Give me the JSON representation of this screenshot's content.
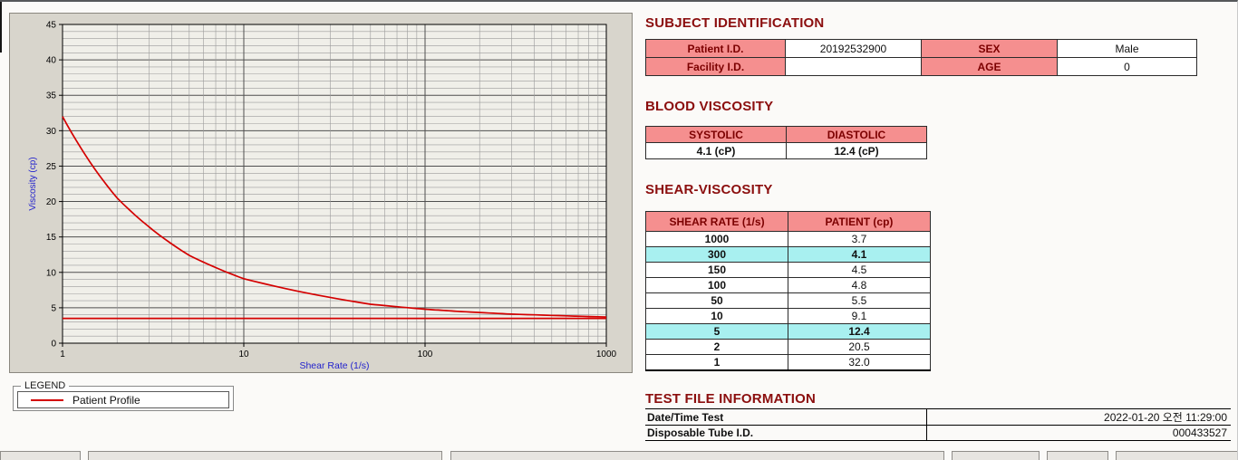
{
  "legend": {
    "title": "LEGEND",
    "series_label": "Patient Profile"
  },
  "subject_identification": {
    "title": "SUBJECT IDENTIFICATION",
    "patient_id_label": "Patient I.D.",
    "patient_id": "20192532900",
    "sex_label": "SEX",
    "sex": "Male",
    "facility_id_label": "Facility I.D.",
    "facility_id": "",
    "age_label": "AGE",
    "age": "0"
  },
  "blood_viscosity": {
    "title": "BLOOD VISCOSITY",
    "systolic_label": "SYSTOLIC",
    "systolic_value": "4.1 (cP)",
    "diastolic_label": "DIASTOLIC",
    "diastolic_value": "12.4 (cP)"
  },
  "shear_viscosity": {
    "title": "SHEAR-VISCOSITY",
    "col_headers": [
      "SHEAR RATE (1/s)",
      "PATIENT (cp)"
    ],
    "rows": [
      {
        "shear_rate": "1000",
        "patient": "3.7",
        "highlight": false
      },
      {
        "shear_rate": "300",
        "patient": "4.1",
        "highlight": true
      },
      {
        "shear_rate": "150",
        "patient": "4.5",
        "highlight": false
      },
      {
        "shear_rate": "100",
        "patient": "4.8",
        "highlight": false
      },
      {
        "shear_rate": "50",
        "patient": "5.5",
        "highlight": false
      },
      {
        "shear_rate": "10",
        "patient": "9.1",
        "highlight": false
      },
      {
        "shear_rate": "5",
        "patient": "12.4",
        "highlight": true
      },
      {
        "shear_rate": "2",
        "patient": "20.5",
        "highlight": false
      },
      {
        "shear_rate": "1",
        "patient": "32.0",
        "highlight": false
      }
    ]
  },
  "test_file_information": {
    "title": "TEST FILE INFORMATION",
    "rows": [
      {
        "label": "Date/Time Test",
        "value": "2022-01-20  오전 11:29:00"
      },
      {
        "label": "Disposable Tube I.D.",
        "value": "000433527"
      }
    ]
  },
  "chart_data": {
    "type": "line",
    "title": "",
    "xlabel": "Shear Rate (1/s)",
    "ylabel": "Viscosity (cp)",
    "x_scale": "log",
    "xlim": [
      1,
      1000
    ],
    "ylim": [
      0,
      45
    ],
    "x_ticks": [
      1,
      10,
      100,
      1000
    ],
    "y_ticks": [
      0,
      5,
      10,
      15,
      20,
      25,
      30,
      35,
      40,
      45
    ],
    "y_minor_step": 1,
    "grid": true,
    "legend_position": "below-left",
    "series": [
      {
        "name": "Patient Profile",
        "color": "#d40000",
        "x": [
          1,
          2,
          5,
          10,
          50,
          100,
          150,
          300,
          1000
        ],
        "y": [
          32.0,
          20.5,
          12.4,
          9.1,
          5.5,
          4.8,
          4.5,
          4.1,
          3.7
        ]
      },
      {
        "name": "reference-line",
        "color": "#d40000",
        "x": [
          1,
          1000
        ],
        "y": [
          3.5,
          3.5
        ]
      }
    ]
  },
  "colors": {
    "section_title": "#8b0e0e",
    "table_header_bg": "#f58f8f",
    "table_header_text": "#7c0000",
    "highlight_row_bg": "#a8f0f0",
    "series_line": "#d40000",
    "axis_label": "#2222cc"
  }
}
